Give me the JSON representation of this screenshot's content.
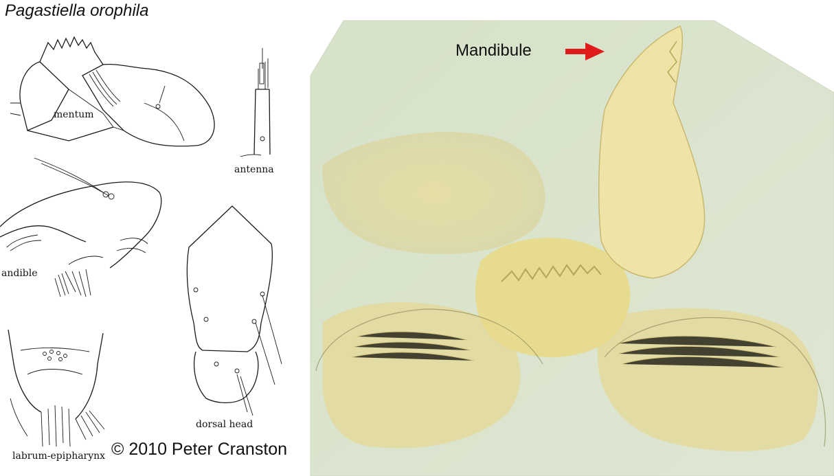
{
  "title": "Pagastiella orophila",
  "drawing_labels": {
    "mentum": "mentum",
    "antenna": "antenna",
    "mandible": "andible",
    "dorsal_head": "dorsal head",
    "labrum_epipharynx": "labrum-epipharynx"
  },
  "photo": {
    "annotation": "Mandibule",
    "arrow_color": "#e01b1b"
  },
  "copyright": "© 2010 Peter Cranston"
}
